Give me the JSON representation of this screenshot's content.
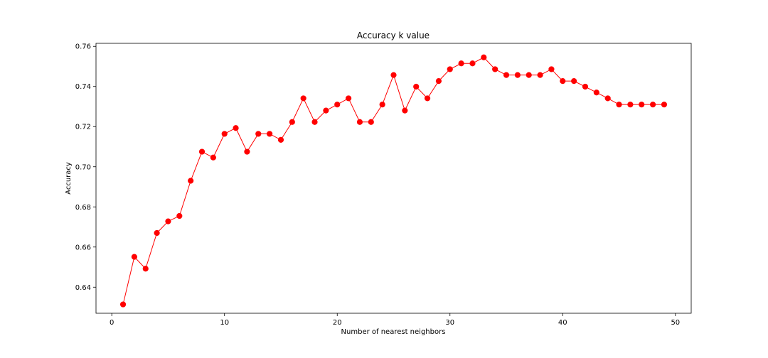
{
  "chart_data": {
    "type": "line",
    "title": "Accuracy k value",
    "xlabel": "Number of nearest neighbors",
    "ylabel": "Accuracy",
    "xlim": [
      -1.4,
      51.4
    ],
    "ylim": [
      0.627,
      0.7615
    ],
    "xticks": [
      0,
      10,
      20,
      30,
      40,
      50
    ],
    "yticks": [
      0.64,
      0.66,
      0.68,
      0.7,
      0.72,
      0.74,
      0.76
    ],
    "ytick_labels": [
      "0.64",
      "0.66",
      "0.68",
      "0.70",
      "0.72",
      "0.74",
      "0.76"
    ],
    "grid": false,
    "series": [
      {
        "color": "#ff0000",
        "marker": "circle",
        "x": [
          1,
          2,
          3,
          4,
          5,
          6,
          7,
          8,
          9,
          10,
          11,
          12,
          13,
          14,
          15,
          16,
          17,
          18,
          19,
          20,
          21,
          22,
          23,
          24,
          25,
          26,
          27,
          28,
          29,
          30,
          31,
          32,
          33,
          34,
          35,
          36,
          37,
          38,
          39,
          40,
          41,
          42,
          43,
          44,
          45,
          46,
          47,
          48,
          49
        ],
        "y": [
          0.6314,
          0.6551,
          0.6492,
          0.667,
          0.6728,
          0.6755,
          0.693,
          0.7075,
          0.7046,
          0.7164,
          0.7193,
          0.7075,
          0.7164,
          0.7164,
          0.7134,
          0.7223,
          0.7341,
          0.7223,
          0.728,
          0.731,
          0.7341,
          0.7223,
          0.7223,
          0.731,
          0.7457,
          0.728,
          0.7399,
          0.7341,
          0.7427,
          0.7486,
          0.7515,
          0.7515,
          0.7545,
          0.7486,
          0.7457,
          0.7457,
          0.7457,
          0.7457,
          0.7486,
          0.7427,
          0.7427,
          0.7399,
          0.737,
          0.7341,
          0.731,
          0.731,
          0.731,
          0.731,
          0.731
        ]
      }
    ]
  }
}
